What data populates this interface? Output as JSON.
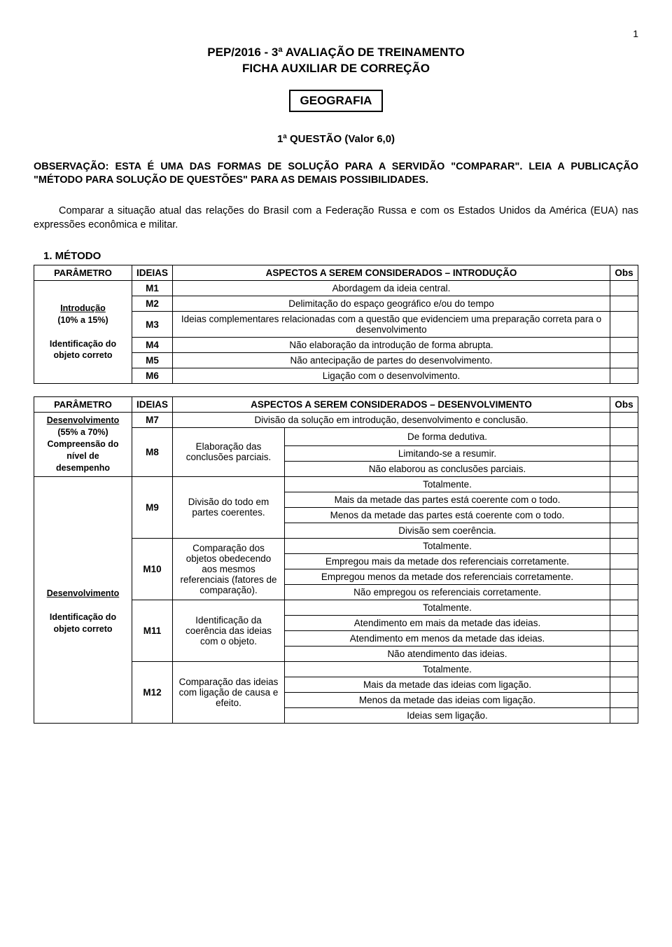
{
  "page_number": "1",
  "title_line1": "PEP/2016 - 3ª AVALIAÇÃO DE TREINAMENTO",
  "title_line2": "FICHA AUXILIAR DE CORREÇÃO",
  "subject": "GEOGRAFIA",
  "question_line": "1ª QUESTÃO (Valor 6,0)",
  "observation": "OBSERVAÇÃO: ESTA É UMA DAS FORMAS DE SOLUÇÃO PARA A SERVIDÃO \"COMPARAR\". LEIA A PUBLICAÇÃO \"MÉTODO PARA SOLUÇÃO DE QUESTÕES\" PARA AS DEMAIS POSSIBILIDADES.",
  "compare_text": "Comparar a situação atual das relações do Brasil com a Federação Russa e com os Estados Unidos da América (EUA) nas expressões econômica e militar.",
  "method_heading": "1. MÉTODO",
  "t1": {
    "h_param": "PARÂMETRO",
    "h_ideias": "IDEIAS",
    "h_aspect": "ASPECTOS A SEREM CONSIDERADOS – INTRODUÇÃO",
    "h_obs": "Obs",
    "param_title": "Introdução",
    "param_pct": "(10% a 15%)",
    "param_sub": "Identificação do objeto correto",
    "rows": [
      {
        "id": "M1",
        "txt": "Abordagem da ideia central."
      },
      {
        "id": "M2",
        "txt": "Delimitação do espaço geográfico e/ou do tempo"
      },
      {
        "id": "M3",
        "txt": "Ideias complementares relacionadas com a questão que evidenciem uma preparação correta para o desenvolvimento"
      },
      {
        "id": "M4",
        "txt": "Não elaboração da introdução de forma abrupta."
      },
      {
        "id": "M5",
        "txt": "Não antecipação de partes do desenvolvimento."
      },
      {
        "id": "M6",
        "txt": "Ligação com o desenvolvimento."
      }
    ]
  },
  "t2": {
    "h_param": "PARÂMETRO",
    "h_ideias": "IDEIAS",
    "h_aspect": "ASPECTOS A SEREM CONSIDERADOS – DESENVOLVIMENTO",
    "h_obs": "Obs",
    "param1_title": "Desenvolvimento",
    "param1_pct": "(55% a 70%)",
    "param1_sub": "Compreensão do nível de desempenho",
    "param2_title": "Desenvolvimento",
    "param2_sub": "Identificação do objeto correto",
    "m7": {
      "id": "M7",
      "txt": "Divisão da solução em introdução, desenvolvimento e conclusão."
    },
    "m8": {
      "id": "M8",
      "left": "Elaboração das conclusões parciais.",
      "r1": "De forma dedutiva.",
      "r2": "Limitando-se a resumir.",
      "r3": "Não elaborou as conclusões parciais."
    },
    "m9": {
      "id": "M9",
      "left": "Divisão do todo em partes coerentes.",
      "r1": "Totalmente.",
      "r2": "Mais da metade das partes está coerente com o todo.",
      "r3": "Menos da metade das partes está coerente com o todo.",
      "r4": "Divisão sem coerência."
    },
    "m10": {
      "id": "M10",
      "left": "Comparação dos objetos obedecendo aos mesmos referenciais (fatores de comparação).",
      "r1": "Totalmente.",
      "r2": "Empregou mais da metade dos referenciais corretamente.",
      "r3": "Empregou menos da metade dos referenciais corretamente.",
      "r4": "Não empregou os referenciais corretamente."
    },
    "m11": {
      "id": "M11",
      "left": "Identificação da coerência das ideias com o objeto.",
      "r1": "Totalmente.",
      "r2": "Atendimento em mais da metade das ideias.",
      "r3": "Atendimento em menos da metade das ideias.",
      "r4": "Não atendimento das ideias."
    },
    "m12": {
      "id": "M12",
      "left": "Comparação das ideias com ligação de causa e efeito.",
      "r1": "Totalmente.",
      "r2": "Mais da metade das ideias com ligação.",
      "r3": "Menos da metade das ideias com ligação.",
      "r4": "Ideias sem ligação."
    }
  }
}
